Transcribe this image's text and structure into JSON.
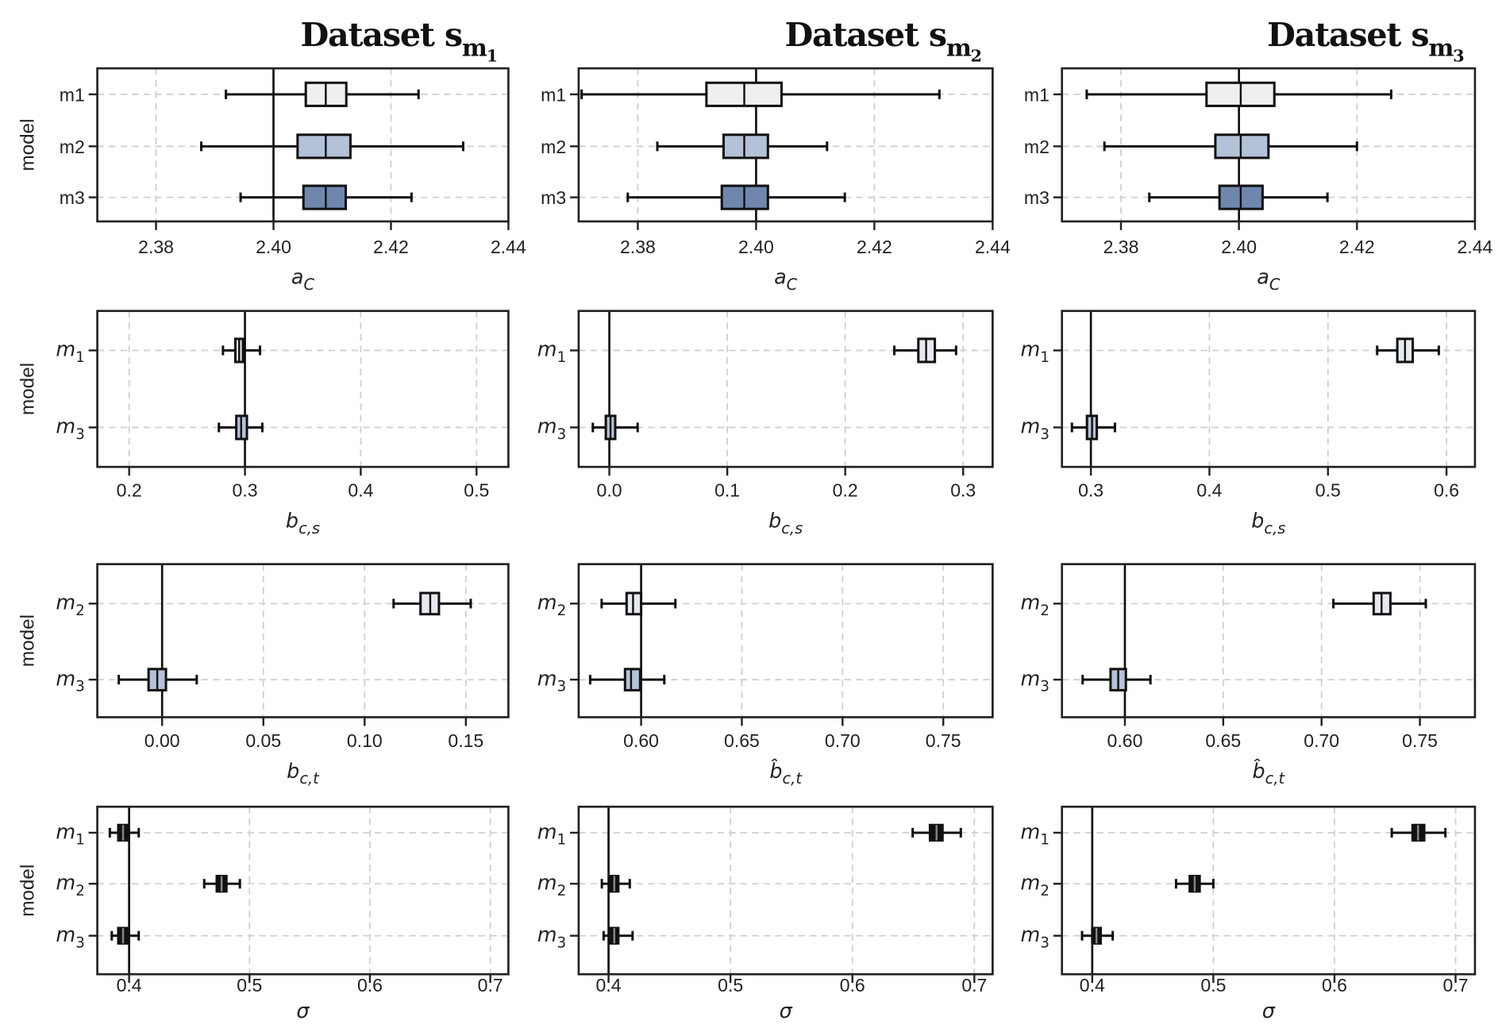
{
  "titles": [
    {
      "text": "Dataset s",
      "sub": "m1"
    },
    {
      "text": "Dataset s",
      "sub": "m2"
    },
    {
      "text": "Dataset s",
      "sub": "m3"
    }
  ],
  "ylabel": "model",
  "colors": {
    "m1": "#efefef",
    "m2": "#b4c2d9",
    "m3": "#6f87ad",
    "light": "#e6e9ee",
    "mid": "#b4c2d9",
    "dark": "#111111"
  },
  "chart_data": [
    {
      "type": "box",
      "row": 0,
      "col": 0,
      "xlabel": "a_C",
      "xlim": [
        2.37,
        2.44
      ],
      "xticks": [
        2.38,
        2.4,
        2.42,
        2.44
      ],
      "xticklabels": [
        "2.38",
        "2.40",
        "2.42",
        "2.44"
      ],
      "ref": 2.4,
      "catstyle": "plain",
      "boxes": [
        {
          "model": "m1",
          "fill": "m1",
          "stats": [
            2.3919,
            2.4055,
            2.4089,
            2.4124,
            2.4247
          ]
        },
        {
          "model": "m2",
          "fill": "m2",
          "stats": [
            2.3877,
            2.4041,
            2.4089,
            2.4131,
            2.4323
          ]
        },
        {
          "model": "m3",
          "fill": "m3",
          "stats": [
            2.3944,
            2.4051,
            2.4089,
            2.4123,
            2.4235
          ]
        }
      ]
    },
    {
      "type": "box",
      "row": 0,
      "col": 1,
      "xlabel": "a_C",
      "xlim": [
        2.37,
        2.44
      ],
      "xticks": [
        2.38,
        2.4,
        2.42,
        2.44
      ],
      "xticklabels": [
        "2.38",
        "2.40",
        "2.42",
        "2.44"
      ],
      "ref": 2.4,
      "catstyle": "plain",
      "boxes": [
        {
          "model": "m1",
          "fill": "m1",
          "stats": [
            2.3705,
            2.3916,
            2.398,
            2.4043,
            2.431
          ]
        },
        {
          "model": "m2",
          "fill": "m2",
          "stats": [
            2.3833,
            2.3945,
            2.398,
            2.402,
            2.412
          ]
        },
        {
          "model": "m3",
          "fill": "m3",
          "stats": [
            2.3783,
            2.3942,
            2.398,
            2.402,
            2.415
          ]
        }
      ]
    },
    {
      "type": "box",
      "row": 0,
      "col": 2,
      "xlabel": "a_C",
      "xlim": [
        2.37,
        2.44
      ],
      "xticks": [
        2.38,
        2.4,
        2.42,
        2.44
      ],
      "xticklabels": [
        "2.38",
        "2.40",
        "2.42",
        "2.44"
      ],
      "ref": 2.4,
      "catstyle": "plain",
      "boxes": [
        {
          "model": "m1",
          "fill": "m1",
          "stats": [
            2.3742,
            2.3945,
            2.4003,
            2.406,
            2.4258
          ]
        },
        {
          "model": "m2",
          "fill": "m2",
          "stats": [
            2.3772,
            2.396,
            2.4003,
            2.405,
            2.42
          ]
        },
        {
          "model": "m3",
          "fill": "m3",
          "stats": [
            2.3848,
            2.3967,
            2.4003,
            2.404,
            2.415
          ]
        }
      ]
    },
    {
      "type": "box",
      "row": 1,
      "col": 0,
      "xlabel": "b_c,s",
      "xlim": [
        0.1725,
        0.5275
      ],
      "xticks": [
        0.2,
        0.3,
        0.4,
        0.5
      ],
      "xticklabels": [
        "0.2",
        "0.3",
        "0.4",
        "0.5"
      ],
      "ref": 0.3,
      "catstyle": "italic",
      "boxes": [
        {
          "model": "m_1",
          "fill": "light",
          "stats": [
            0.281,
            0.2917,
            0.295,
            0.2983,
            0.313
          ]
        },
        {
          "model": "m_3",
          "fill": "mid",
          "stats": [
            0.2775,
            0.2925,
            0.2967,
            0.3017,
            0.315
          ]
        }
      ]
    },
    {
      "type": "box",
      "row": 1,
      "col": 1,
      "xlabel": "b_c,s",
      "xlim": [
        -0.026,
        0.325
      ],
      "xticks": [
        0.0,
        0.1,
        0.2,
        0.3
      ],
      "xticklabels": [
        "0.0",
        "0.1",
        "0.2",
        "0.3"
      ],
      "ref": 0.0,
      "catstyle": "italic",
      "boxes": [
        {
          "model": "m_1",
          "fill": "light",
          "stats": [
            0.2416,
            0.262,
            0.2686,
            0.276,
            0.294
          ]
        },
        {
          "model": "m_3",
          "fill": "mid",
          "stats": [
            -0.014,
            -0.003,
            0.001,
            0.005,
            0.024
          ]
        }
      ]
    },
    {
      "type": "box",
      "row": 1,
      "col": 2,
      "xlabel": "b_c,s",
      "xlim": [
        0.2756,
        0.624
      ],
      "xticks": [
        0.3,
        0.4,
        0.5,
        0.6
      ],
      "xticklabels": [
        "0.3",
        "0.4",
        "0.5",
        "0.6"
      ],
      "ref": 0.3,
      "catstyle": "italic",
      "boxes": [
        {
          "model": "m_1",
          "fill": "light",
          "stats": [
            0.5415,
            0.5585,
            0.565,
            0.5715,
            0.5935
          ]
        },
        {
          "model": "m_3",
          "fill": "mid",
          "stats": [
            0.284,
            0.2967,
            0.301,
            0.305,
            0.3203
          ]
        }
      ]
    },
    {
      "type": "box",
      "row": 2,
      "col": 0,
      "xlabel": "b_c,t",
      "xlim": [
        -0.032,
        0.171
      ],
      "xticks": [
        0.0,
        0.05,
        0.1,
        0.15
      ],
      "xticklabels": [
        "0.00",
        "0.05",
        "0.10",
        "0.15"
      ],
      "ref": 0.0,
      "catstyle": "italic",
      "boxes": [
        {
          "model": "m_2",
          "fill": "light",
          "stats": [
            0.1143,
            0.1276,
            0.1324,
            0.1367,
            0.1524
          ]
        },
        {
          "model": "m_3",
          "fill": "mid",
          "stats": [
            -0.0214,
            -0.0067,
            -0.0024,
            0.0019,
            0.0171
          ]
        }
      ]
    },
    {
      "type": "box",
      "row": 2,
      "col": 1,
      "xlabel": "b̂_c,t",
      "xlim": [
        0.569,
        0.7745
      ],
      "xticks": [
        0.6,
        0.65,
        0.7,
        0.75
      ],
      "xticklabels": [
        "0.60",
        "0.65",
        "0.70",
        "0.75"
      ],
      "ref": 0.6,
      "catstyle": "italic",
      "boxes": [
        {
          "model": "m_2",
          "fill": "light",
          "stats": [
            0.5804,
            0.5928,
            0.596,
            0.6,
            0.617
          ]
        },
        {
          "model": "m_3",
          "fill": "mid",
          "stats": [
            0.5747,
            0.592,
            0.595,
            0.5995,
            0.6115
          ]
        }
      ]
    },
    {
      "type": "box",
      "row": 2,
      "col": 2,
      "xlabel": "b̂_c,t",
      "xlim": [
        0.568,
        0.778
      ],
      "xticks": [
        0.6,
        0.65,
        0.7,
        0.75
      ],
      "xticklabels": [
        "0.60",
        "0.65",
        "0.70",
        "0.75"
      ],
      "ref": 0.6,
      "catstyle": "italic",
      "boxes": [
        {
          "model": "m_2",
          "fill": "light",
          "stats": [
            0.706,
            0.7265,
            0.7305,
            0.735,
            0.753
          ]
        },
        {
          "model": "m_3",
          "fill": "mid",
          "stats": [
            0.5785,
            0.5927,
            0.5966,
            0.6005,
            0.613
          ]
        }
      ]
    },
    {
      "type": "box",
      "row": 3,
      "col": 0,
      "xlabel": "σ",
      "xlim": [
        0.3736,
        0.715
      ],
      "xticks": [
        0.4,
        0.5,
        0.6,
        0.7
      ],
      "xticklabels": [
        "0.4",
        "0.5",
        "0.6",
        "0.7"
      ],
      "ref": 0.4,
      "catstyle": "italic",
      "boxes": [
        {
          "model": "m_1",
          "fill": "dark",
          "stats": [
            0.384,
            0.391,
            0.395,
            0.399,
            0.408
          ]
        },
        {
          "model": "m_2",
          "fill": "dark",
          "stats": [
            0.4624,
            0.4728,
            0.4768,
            0.4808,
            0.492
          ]
        },
        {
          "model": "m_3",
          "fill": "dark",
          "stats": [
            0.3856,
            0.391,
            0.395,
            0.399,
            0.408
          ]
        }
      ]
    },
    {
      "type": "box",
      "row": 3,
      "col": 1,
      "xlabel": "σ",
      "xlim": [
        0.3755,
        0.715
      ],
      "xticks": [
        0.4,
        0.5,
        0.6,
        0.7
      ],
      "xticklabels": [
        "0.4",
        "0.5",
        "0.6",
        "0.7"
      ],
      "ref": 0.4,
      "catstyle": "italic",
      "boxes": [
        {
          "model": "m_1",
          "fill": "dark",
          "stats": [
            0.6494,
            0.6636,
            0.669,
            0.6739,
            0.6889
          ]
        },
        {
          "model": "m_2",
          "fill": "dark",
          "stats": [
            0.3945,
            0.4016,
            0.4047,
            0.408,
            0.4174
          ]
        },
        {
          "model": "m_3",
          "fill": "dark",
          "stats": [
            0.396,
            0.4016,
            0.4047,
            0.408,
            0.4197
          ]
        }
      ]
    },
    {
      "type": "box",
      "row": 3,
      "col": 2,
      "xlabel": "σ",
      "xlim": [
        0.375,
        0.716
      ],
      "xticks": [
        0.4,
        0.5,
        0.6,
        0.7
      ],
      "xticklabels": [
        "0.4",
        "0.5",
        "0.6",
        "0.7"
      ],
      "ref": 0.4,
      "catstyle": "italic",
      "boxes": [
        {
          "model": "m_1",
          "fill": "dark",
          "stats": [
            0.6473,
            0.6645,
            0.669,
            0.6741,
            0.6916
          ]
        },
        {
          "model": "m_2",
          "fill": "dark",
          "stats": [
            0.4692,
            0.4805,
            0.4846,
            0.4887,
            0.5
          ]
        },
        {
          "model": "m_3",
          "fill": "dark",
          "stats": [
            0.3916,
            0.4,
            0.4035,
            0.407,
            0.4169
          ]
        }
      ]
    }
  ]
}
